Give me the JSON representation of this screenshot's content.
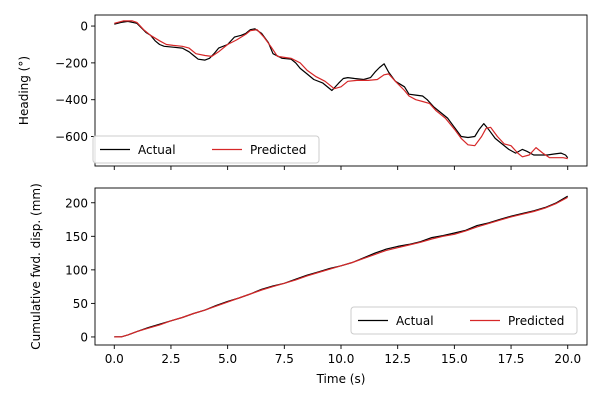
{
  "chart_data": [
    {
      "type": "line",
      "ylabel": "Heading (°)",
      "xlabel": "",
      "xlim": [
        -0.85,
        20.85
      ],
      "ylim": [
        -760,
        60
      ],
      "xticks": [
        0.0,
        2.5,
        5.0,
        7.5,
        10.0,
        12.5,
        15.0,
        17.5,
        20.0
      ],
      "yticks": [
        0,
        -200,
        -400,
        -600
      ],
      "ytick_labels": [
        "0",
        "−200",
        "−400",
        "−600"
      ],
      "show_xtick_labels": false,
      "legend": {
        "position": "lower-left",
        "entries": [
          "Actual",
          "Predicted"
        ]
      },
      "series": [
        {
          "name": "Actual",
          "color": "#000000",
          "x": [
            0,
            0.3,
            0.6,
            1.0,
            1.2,
            1.4,
            1.6,
            1.8,
            2.0,
            2.2,
            2.6,
            3.0,
            3.3,
            3.5,
            3.7,
            4.0,
            4.2,
            4.4,
            4.6,
            5.0,
            5.3,
            5.6,
            5.8,
            6.0,
            6.2,
            6.5,
            6.8,
            7.0,
            7.4,
            7.8,
            8.0,
            8.2,
            8.5,
            8.8,
            9.2,
            9.6,
            9.9,
            10.1,
            10.3,
            10.6,
            11.0,
            11.3,
            11.5,
            11.7,
            11.9,
            12.1,
            12.4,
            12.8,
            13.0,
            13.3,
            13.6,
            13.8,
            14.1,
            14.4,
            14.7,
            15.0,
            15.3,
            15.6,
            15.9,
            16.1,
            16.3,
            16.5,
            16.8,
            17.1,
            17.4,
            17.7,
            18.0,
            18.2,
            18.5,
            18.8,
            19.1,
            19.4,
            19.7,
            19.9,
            20.0
          ],
          "y": [
            10,
            20,
            25,
            15,
            -10,
            -35,
            -50,
            -80,
            -100,
            -110,
            -115,
            -120,
            -140,
            -160,
            -180,
            -185,
            -175,
            -150,
            -120,
            -100,
            -60,
            -50,
            -40,
            -20,
            -15,
            -40,
            -90,
            -150,
            -175,
            -180,
            -200,
            -230,
            -260,
            -290,
            -310,
            -350,
            -310,
            -285,
            -280,
            -285,
            -290,
            -280,
            -250,
            -225,
            -205,
            -250,
            -300,
            -330,
            -370,
            -375,
            -380,
            -400,
            -440,
            -470,
            -500,
            -550,
            -600,
            -605,
            -600,
            -560,
            -530,
            -560,
            -610,
            -640,
            -670,
            -690,
            -670,
            -680,
            -700,
            -700,
            -700,
            -695,
            -690,
            -700,
            -715
          ]
        },
        {
          "name": "Predicted",
          "color": "#d62728",
          "x": [
            0,
            0.4,
            0.8,
            1.0,
            1.3,
            1.6,
            2.0,
            2.3,
            2.6,
            3.0,
            3.3,
            3.6,
            4.0,
            4.3,
            4.6,
            5.0,
            5.4,
            5.8,
            6.0,
            6.3,
            6.6,
            6.9,
            7.2,
            7.5,
            7.8,
            8.2,
            8.5,
            8.9,
            9.3,
            9.7,
            10.0,
            10.3,
            10.7,
            11.2,
            11.6,
            11.9,
            12.1,
            12.4,
            12.8,
            13.0,
            13.3,
            13.6,
            13.9,
            14.2,
            14.6,
            15.0,
            15.3,
            15.6,
            15.9,
            16.2,
            16.4,
            16.6,
            16.9,
            17.2,
            17.5,
            17.8,
            18.0,
            18.3,
            18.6,
            18.9,
            19.2,
            19.5,
            19.8,
            20.0
          ],
          "y": [
            15,
            28,
            28,
            20,
            -20,
            -50,
            -80,
            -100,
            -105,
            -110,
            -120,
            -150,
            -160,
            -165,
            -140,
            -100,
            -75,
            -45,
            -25,
            -20,
            -60,
            -110,
            -165,
            -170,
            -175,
            -200,
            -240,
            -275,
            -300,
            -340,
            -330,
            -300,
            -295,
            -295,
            -290,
            -265,
            -260,
            -300,
            -350,
            -380,
            -400,
            -410,
            -420,
            -460,
            -500,
            -560,
            -610,
            -645,
            -650,
            -600,
            -555,
            -550,
            -600,
            -640,
            -650,
            -690,
            -710,
            -700,
            -660,
            -690,
            -715,
            -715,
            -715,
            -720
          ]
        }
      ]
    },
    {
      "type": "line",
      "ylabel": "Cumulative fwd. disp. (mm)",
      "xlabel": "Time (s)",
      "xlim": [
        -0.85,
        20.85
      ],
      "ylim": [
        -12,
        222
      ],
      "xticks": [
        0.0,
        2.5,
        5.0,
        7.5,
        10.0,
        12.5,
        15.0,
        17.5,
        20.0
      ],
      "xtick_labels": [
        "0.0",
        "2.5",
        "5.0",
        "7.5",
        "10.0",
        "12.5",
        "15.0",
        "17.5",
        "20.0"
      ],
      "yticks": [
        0,
        50,
        100,
        150,
        200
      ],
      "ytick_labels": [
        "0",
        "50",
        "100",
        "150",
        "200"
      ],
      "show_xtick_labels": true,
      "legend": {
        "position": "lower-right",
        "entries": [
          "Actual",
          "Predicted"
        ]
      },
      "series": [
        {
          "name": "Actual",
          "color": "#000000",
          "x": [
            0,
            0.3,
            0.6,
            1.0,
            1.5,
            2.0,
            2.5,
            3.0,
            3.5,
            4.0,
            4.5,
            5.0,
            5.5,
            6.0,
            6.5,
            7.0,
            7.5,
            8.0,
            8.5,
            9.0,
            9.5,
            10.0,
            10.5,
            11.0,
            11.5,
            12.0,
            12.5,
            13.0,
            13.5,
            14.0,
            14.5,
            15.0,
            15.5,
            16.0,
            16.5,
            17.0,
            17.5,
            18.0,
            18.5,
            19.0,
            19.5,
            20.0
          ],
          "y": [
            0,
            0,
            3,
            8,
            14,
            19,
            24,
            29,
            35,
            40,
            47,
            53,
            58,
            64,
            71,
            76,
            80,
            86,
            92,
            97,
            102,
            106,
            111,
            118,
            125,
            131,
            135,
            138,
            142,
            148,
            151,
            155,
            159,
            166,
            170,
            175,
            180,
            184,
            188,
            193,
            200,
            210
          ]
        },
        {
          "name": "Predicted",
          "color": "#d62728",
          "x": [
            0,
            0.3,
            0.6,
            1.0,
            1.5,
            2.0,
            2.5,
            3.0,
            3.5,
            4.0,
            4.5,
            5.0,
            5.5,
            6.0,
            6.5,
            7.0,
            7.5,
            8.0,
            8.5,
            9.0,
            9.5,
            10.0,
            10.5,
            11.0,
            11.5,
            12.0,
            12.5,
            13.0,
            13.5,
            14.0,
            14.5,
            15.0,
            15.5,
            16.0,
            16.5,
            17.0,
            17.5,
            18.0,
            18.5,
            19.0,
            19.5,
            20.0
          ],
          "y": [
            0,
            0,
            3,
            8,
            13,
            18,
            24,
            29,
            35,
            40,
            46,
            52,
            58,
            64,
            70,
            75,
            80,
            85,
            91,
            96,
            101,
            106,
            111,
            117,
            123,
            129,
            133,
            137,
            141,
            146,
            150,
            153,
            158,
            164,
            169,
            174,
            179,
            183,
            187,
            192,
            199,
            208
          ]
        }
      ]
    }
  ]
}
